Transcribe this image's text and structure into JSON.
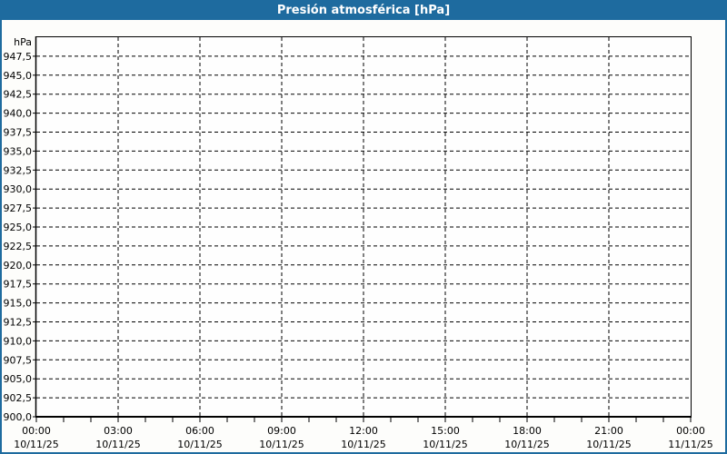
{
  "title": "Presión atmosférica [hPa]",
  "colors": {
    "accent_blue": "#1e6b9f",
    "title_text": "#ffffff",
    "window_background": "#fdfdfb",
    "plot_background": "#fefefe",
    "grid": "#000000",
    "axis": "#000000",
    "label_text": "#000000"
  },
  "chart_data": {
    "type": "line",
    "title": "Presión atmosférica [hPa]",
    "ylabel": "hPa",
    "ylim": [
      900,
      950
    ],
    "y_tick_step": 2.5,
    "y_unit_label": "hPa",
    "y_tick_labels": [
      "947,5",
      "945,0",
      "942,5",
      "940,0",
      "937,5",
      "935,0",
      "932,5",
      "930,0",
      "927,5",
      "925,0",
      "922,5",
      "920,0",
      "917,5",
      "915,0",
      "912,5",
      "910,0",
      "907,5",
      "905,0",
      "902,5",
      "900,0"
    ],
    "y_tick_values": [
      947.5,
      945.0,
      942.5,
      940.0,
      937.5,
      935.0,
      932.5,
      930.0,
      927.5,
      925.0,
      922.5,
      920.0,
      917.5,
      915.0,
      912.5,
      910.0,
      907.5,
      905.0,
      902.5,
      900.0
    ],
    "x_span_hours": 24,
    "x_major_every_hours": 3,
    "x_minor_every_hours": 1,
    "x_ticks": [
      {
        "time": "00:00",
        "date": "10/11/25"
      },
      {
        "time": "03:00",
        "date": "10/11/25"
      },
      {
        "time": "06:00",
        "date": "10/11/25"
      },
      {
        "time": "09:00",
        "date": "10/11/25"
      },
      {
        "time": "12:00",
        "date": "10/11/25"
      },
      {
        "time": "15:00",
        "date": "10/11/25"
      },
      {
        "time": "18:00",
        "date": "10/11/25"
      },
      {
        "time": "21:00",
        "date": "10/11/25"
      },
      {
        "time": "00:00",
        "date": "11/11/25"
      }
    ],
    "grid_style": "dashed",
    "legend": "none",
    "series": []
  }
}
